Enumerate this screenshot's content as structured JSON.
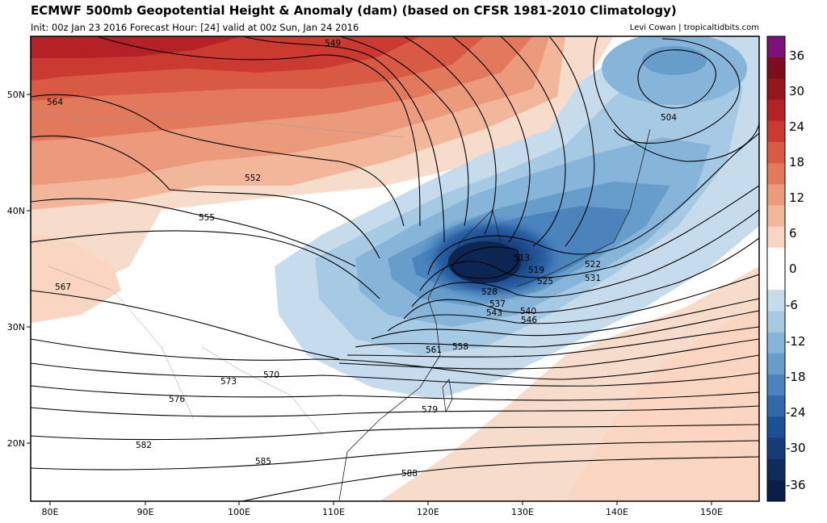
{
  "header": {
    "title": "ECMWF 500mb Geopotential Height & Anomaly (dam) (based on CFSR 1981-2010 Climatology)",
    "init_line": "Init: 00z Jan 23 2016   Forecast Hour: [24]   valid at 00z Sun, Jan 24 2016",
    "credit": "Levi Cowan | tropicaltidbits.com"
  },
  "map": {
    "lon_labels": [
      "80E",
      "90E",
      "100E",
      "110E",
      "120E",
      "130E",
      "140E",
      "150E"
    ],
    "lat_labels": [
      "50N",
      "40N",
      "30N",
      "20N"
    ],
    "contour_labels": [
      "504",
      "513",
      "519",
      "522",
      "525",
      "528",
      "531",
      "537",
      "540",
      "543",
      "546",
      "549",
      "552",
      "555",
      "558",
      "561",
      "564",
      "567",
      "570",
      "573",
      "576",
      "579",
      "582",
      "585",
      "588"
    ]
  },
  "colorbar": {
    "ticks": [
      "36",
      "30",
      "24",
      "18",
      "12",
      "6",
      "0",
      "-6",
      "-12",
      "-18",
      "-24",
      "-30",
      "-36"
    ],
    "colors": [
      "#7a127a",
      "#7a0e1e",
      "#95161c",
      "#b42126",
      "#cb3a31",
      "#d85a44",
      "#e3795c",
      "#eb9a7b",
      "#f2b79b",
      "#f9d5c2",
      "#ffffff",
      "#ffffff",
      "#c6dced",
      "#a6cae4",
      "#86b5d9",
      "#669dcb",
      "#4b84bd",
      "#3169ab",
      "#1d4f94",
      "#163b78",
      "#102c5c",
      "#0a1e47"
    ]
  }
}
